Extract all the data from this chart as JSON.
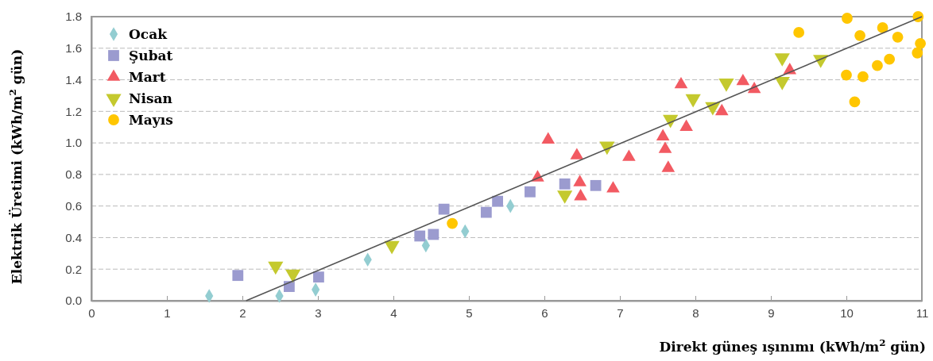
{
  "chart_data": {
    "type": "scatter",
    "xlabel": "Direkt güneş ışınımı (kWh/m$^{2}$ gün)",
    "ylabel": "Elektrik Üretimi (kWh/m$^{2}$ gün)",
    "xlim": [
      0,
      11
    ],
    "xticks": [
      0,
      1,
      2,
      3,
      4,
      5,
      6,
      7,
      8,
      9,
      10,
      11
    ],
    "ylim": [
      0,
      1.8
    ],
    "yticks": [
      {
        "value": 0,
        "label": "0.0"
      },
      {
        "value": 0.2,
        "label": "0.2"
      },
      {
        "value": 0.4,
        "label": "0.4"
      },
      {
        "value": 0.6,
        "label": "0.6"
      },
      {
        "value": 0.8,
        "label": "0.8"
      },
      {
        "value": 1.0,
        "label": "1.0"
      },
      {
        "value": 1.2,
        "label": "1.2"
      },
      {
        "value": 1.4,
        "label": "1.4"
      },
      {
        "value": 1.6,
        "label": "1.6"
      },
      {
        "value": 1.8,
        "label": "1.8"
      }
    ],
    "grid": "y",
    "legend": "top left",
    "series": [
      {
        "name": "Ocak",
        "color": "#93cdd1",
        "marker": "diamond",
        "x": [
          1.56,
          2.49,
          2.97,
          3.66,
          4.43,
          4.95,
          5.55
        ],
        "values": [
          0.03,
          0.03,
          0.07,
          0.26,
          0.35,
          0.44,
          0.6
        ]
      },
      {
        "name": "Şubat",
        "color": "#9b9bcf",
        "marker": "square",
        "x": [
          1.94,
          2.62,
          3.01,
          4.35,
          4.53,
          4.67,
          5.23,
          5.38,
          5.81,
          6.27,
          6.68
        ],
        "values": [
          0.16,
          0.09,
          0.15,
          0.41,
          0.42,
          0.58,
          0.56,
          0.63,
          0.69,
          0.74,
          0.73
        ]
      },
      {
        "name": "Mart",
        "color": "#f25a62",
        "marker": "triangle",
        "x": [
          5.91,
          6.05,
          6.43,
          6.47,
          6.48,
          6.91,
          7.12,
          7.57,
          7.6,
          7.64,
          7.88,
          7.81,
          8.35,
          8.63,
          8.78,
          9.25
        ],
        "values": [
          0.78,
          1.02,
          0.92,
          0.75,
          0.66,
          0.71,
          0.91,
          1.04,
          0.96,
          0.84,
          1.1,
          1.37,
          1.2,
          1.39,
          1.34,
          1.46
        ]
      },
      {
        "name": "Nisan",
        "color": "#c4c92e",
        "marker": "triangle-down",
        "x": [
          2.44,
          2.67,
          3.98,
          6.27,
          6.83,
          7.67,
          7.97,
          8.23,
          8.41,
          9.15,
          9.15,
          9.66
        ],
        "values": [
          0.22,
          0.17,
          0.35,
          0.67,
          0.98,
          1.15,
          1.28,
          1.23,
          1.38,
          1.54,
          1.39,
          1.53
        ]
      },
      {
        "name": "Mayıs",
        "color": "#ffc600",
        "marker": "circle",
        "x": [
          4.78,
          9.37,
          10.01,
          10.18,
          10.48,
          10.68,
          10.95,
          10.98,
          10.94,
          10.57,
          10.41,
          10.0,
          10.22,
          10.11
        ],
        "values": [
          0.49,
          1.7,
          1.79,
          1.68,
          1.73,
          1.67,
          1.8,
          1.63,
          1.57,
          1.53,
          1.49,
          1.43,
          1.42,
          1.26
        ]
      },
      {
        "type": "line",
        "color": "#555555",
        "marker": "none",
        "x": [
          2.05,
          11
        ],
        "values": [
          0,
          1.8
        ]
      }
    ]
  }
}
